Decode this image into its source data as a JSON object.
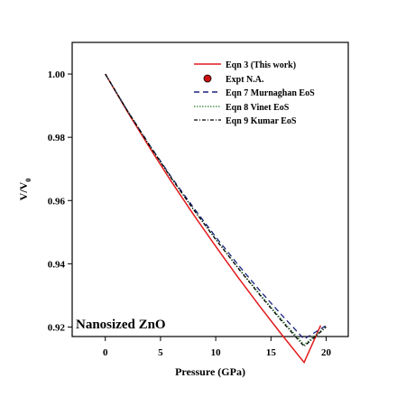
{
  "chart_data": {
    "type": "line",
    "title": "",
    "xlabel": "Pressure (GPa)",
    "ylabel_main": "V/V",
    "ylabel_sub": "0",
    "xlim": [
      -3,
      22
    ],
    "ylim": [
      0.917,
      1.01
    ],
    "x_ticks": [
      0,
      5,
      10,
      15,
      20
    ],
    "y_ticks": [
      0.92,
      0.94,
      0.96,
      0.98,
      1.0
    ],
    "y_tick_labels": [
      "0.92",
      "0.94",
      "0.96",
      "0.98",
      "1.00"
    ],
    "grid": false,
    "legend_position": "top-right",
    "annotation": "Nanosized ZnO",
    "series": [
      {
        "name": "Eqn 3 (This work)",
        "style": "solid",
        "color": "#e31a1c",
        "x": [
          0,
          2,
          4,
          6,
          8,
          10,
          12,
          14,
          16,
          18,
          19.5
        ],
        "y": [
          1.0,
          0.9881,
          0.9768,
          0.9659,
          0.9555,
          0.9455,
          0.9358,
          0.9265,
          0.9175,
          0.9088,
          0.9205
        ]
      },
      {
        "name": "Expt  N.A.",
        "style": "marker",
        "color": "#cc1111",
        "x": [],
        "y": []
      },
      {
        "name": "Eqn 7 Murnaghan EoS",
        "style": "dashed",
        "color": "#1a237e",
        "x": [
          0,
          2,
          4,
          6,
          8,
          10,
          12,
          14,
          16,
          18,
          20
        ],
        "y": [
          1.0,
          0.9884,
          0.9776,
          0.9673,
          0.9577,
          0.9485,
          0.9398,
          0.9315,
          0.9237,
          0.9162,
          0.9205
        ]
      },
      {
        "name": "Eqn 8 Vinet EoS",
        "style": "dotted",
        "color": "#2e7d32",
        "x": [
          0,
          2,
          4,
          6,
          8,
          10,
          12,
          14,
          16,
          18,
          20
        ],
        "y": [
          1.0,
          0.9884,
          0.9774,
          0.967,
          0.9571,
          0.9478,
          0.9389,
          0.9304,
          0.9222,
          0.9144,
          0.9202
        ]
      },
      {
        "name": "Eqn 9 Kumar EoS",
        "style": "dashdot",
        "color": "#000000",
        "x": [
          0,
          2,
          4,
          6,
          8,
          10,
          12,
          14,
          16,
          18,
          20
        ],
        "y": [
          1.0,
          0.9884,
          0.9774,
          0.967,
          0.9571,
          0.9477,
          0.9387,
          0.9301,
          0.9218,
          0.9139,
          0.92
        ]
      }
    ]
  }
}
